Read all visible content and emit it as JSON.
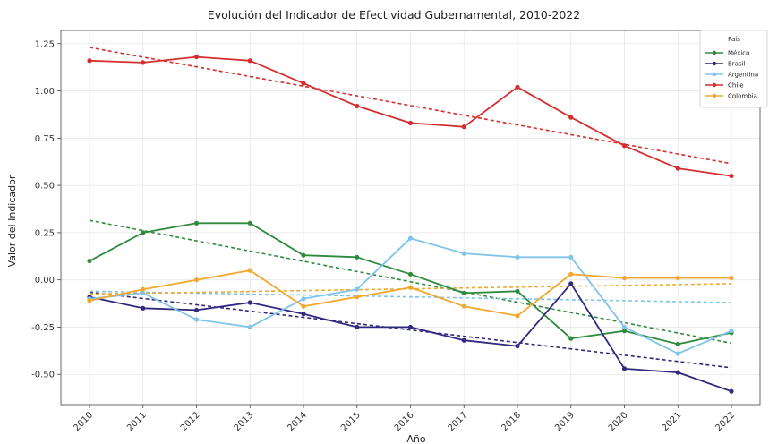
{
  "chart_data": {
    "type": "line",
    "title": "Evolución del Indicador de Efectividad Gubernamental, 2010-2022",
    "xlabel": "Año",
    "ylabel": "Valor del Indicador",
    "x": [
      "2010",
      "2011",
      "2012",
      "2013",
      "2014",
      "2015",
      "2016",
      "2017",
      "2018",
      "2019",
      "2020",
      "2021",
      "2022"
    ],
    "ylim": [
      -0.66,
      1.32
    ],
    "yticks": [
      "1.25",
      "1.00",
      "0.75",
      "0.50",
      "0.25",
      "0.00",
      "-0.25",
      "-0.50"
    ],
    "ytick_values": [
      1.25,
      1.0,
      0.75,
      0.5,
      0.25,
      0.0,
      -0.25,
      -0.5
    ],
    "grid": true,
    "legend": {
      "title": "País",
      "placement": "top-right"
    },
    "series": [
      {
        "name": "México",
        "color": "#2e8b3e",
        "values": [
          0.1,
          0.25,
          0.3,
          0.3,
          0.13,
          0.12,
          0.03,
          -0.07,
          -0.06,
          -0.31,
          -0.27,
          -0.34,
          -0.28
        ],
        "trend": [
          0.315,
          -0.335
        ]
      },
      {
        "name": "Brasil",
        "color": "#2f2a7e",
        "values": [
          -0.09,
          -0.15,
          -0.16,
          -0.12,
          -0.18,
          -0.25,
          -0.25,
          -0.32,
          -0.35,
          -0.02,
          -0.47,
          -0.49,
          -0.59
        ],
        "trend": [
          -0.065,
          -0.465
        ]
      },
      {
        "name": "Argentina",
        "color": "#80c4ea",
        "values": [
          -0.1,
          -0.07,
          -0.21,
          -0.25,
          -0.1,
          -0.05,
          0.22,
          0.14,
          0.12,
          0.12,
          -0.25,
          -0.39,
          -0.27
        ],
        "trend": [
          -0.06,
          -0.12
        ]
      },
      {
        "name": "Chile",
        "color": "#d42e2e",
        "values": [
          1.16,
          1.15,
          1.18,
          1.16,
          1.04,
          0.92,
          0.83,
          0.81,
          1.02,
          0.86,
          0.71,
          0.59,
          0.55
        ],
        "trend": [
          1.23,
          0.615
        ]
      },
      {
        "name": "Colombia",
        "color": "#f0a830",
        "values": [
          -0.11,
          -0.05,
          0.0,
          0.05,
          -0.14,
          -0.09,
          -0.04,
          -0.14,
          -0.19,
          0.03,
          0.01,
          0.01,
          0.01
        ],
        "trend": [
          -0.075,
          -0.02
        ]
      }
    ]
  }
}
